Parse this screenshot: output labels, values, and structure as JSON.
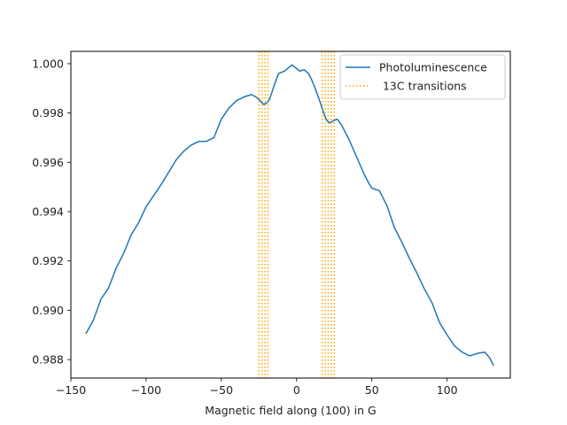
{
  "chart_data": {
    "type": "line",
    "title": "",
    "xlabel": "Magnetic field along (100) in G",
    "ylabel": "",
    "xlim": [
      -150,
      142
    ],
    "ylim": [
      0.98725,
      1.0005
    ],
    "xticks": [
      -150,
      -100,
      -50,
      0,
      50,
      100
    ],
    "xtick_labels": [
      "−150",
      "−100",
      "−50",
      "0",
      "50",
      "100"
    ],
    "yticks": [
      0.988,
      0.99,
      0.992,
      0.994,
      0.996,
      0.998,
      1.0
    ],
    "ytick_labels": [
      "0.988",
      "0.990",
      "0.992",
      "0.994",
      "0.996",
      "0.998",
      "1.000"
    ],
    "grid": false,
    "legend_position": "top-right",
    "series": [
      {
        "name": "Photoluminescence",
        "color": "#1f77b4",
        "style": "solid",
        "x": [
          -140,
          -135,
          -130,
          -125,
          -120,
          -115,
          -110,
          -105,
          -100,
          -95,
          -90,
          -85,
          -80,
          -75,
          -70,
          -65,
          -60,
          -55,
          -50,
          -45,
          -40,
          -35,
          -30,
          -27,
          -25,
          -22,
          -20,
          -18,
          -15,
          -12,
          -10,
          -8,
          -5,
          -3,
          0,
          2,
          5,
          8,
          10,
          12,
          15,
          18,
          20,
          22,
          25,
          27,
          30,
          35,
          40,
          45,
          48,
          50,
          55,
          60,
          65,
          70,
          75,
          80,
          85,
          90,
          95,
          100,
          105,
          110,
          115,
          120,
          125,
          128,
          131
        ],
        "y": [
          0.98905,
          0.9896,
          0.99045,
          0.9909,
          0.9917,
          0.9923,
          0.99305,
          0.99355,
          0.9942,
          0.99465,
          0.9951,
          0.9956,
          0.9961,
          0.99645,
          0.9967,
          0.99685,
          0.99685,
          0.997,
          0.99775,
          0.9982,
          0.9985,
          0.99865,
          0.99875,
          0.99865,
          0.99855,
          0.99835,
          0.9984,
          0.99855,
          0.9991,
          0.9996,
          0.99965,
          0.9997,
          0.99985,
          0.99995,
          0.9998,
          0.9997,
          0.99975,
          0.9996,
          0.99935,
          0.99905,
          0.99855,
          0.998,
          0.9977,
          0.9976,
          0.9977,
          0.99775,
          0.9975,
          0.9969,
          0.9962,
          0.9955,
          0.99515,
          0.99495,
          0.99485,
          0.99425,
          0.99335,
          0.99275,
          0.9921,
          0.9915,
          0.99085,
          0.9903,
          0.9895,
          0.989,
          0.98855,
          0.9883,
          0.98815,
          0.98825,
          0.9883,
          0.9881,
          0.98775
        ]
      },
      {
        "name": " 13C transitions",
        "color": "#ffa500",
        "style": "dotted",
        "x_lines": [
          -25,
          -23,
          -21,
          -19,
          17,
          19,
          21,
          23,
          25
        ]
      }
    ]
  }
}
